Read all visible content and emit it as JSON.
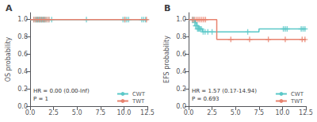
{
  "chart_data": [
    {
      "type": "step",
      "title": "A",
      "ylabel": "OS probability",
      "xlim": [
        0,
        12.5
      ],
      "ylim": [
        0.0,
        1.08
      ],
      "xticks": [
        {
          "value": 0,
          "label": "0.0"
        },
        2.5,
        {
          "value": 5,
          "label": "5.0"
        },
        7.5,
        {
          "value": 10,
          "label": "10.0"
        },
        12.5
      ],
      "yticks": [
        {
          "value": 0.0,
          "label": "0.0"
        },
        0.2,
        0.4,
        0.6,
        0.8,
        {
          "value": 1.0,
          "label": "1.0"
        }
      ],
      "grid": false,
      "legend": "lower right",
      "marker": "plus",
      "annotations": [
        "HR = 0.00 (0.00-Inf)",
        "P = 1"
      ],
      "series": [
        {
          "name": "CWT",
          "color": "#5BC8C8",
          "x": [
            0,
            12.5
          ],
          "values": [
            1.0,
            1.0
          ],
          "censor_x": [
            0.4,
            0.6,
            0.7,
            0.8,
            0.9,
            1.0,
            1.1,
            1.2,
            1.3,
            1.4,
            1.5,
            1.6,
            1.8,
            2.0,
            2.3,
            6.0,
            9.9,
            10.1,
            10.3,
            10.5,
            11.9,
            12.1,
            12.3
          ],
          "censor_y": [
            1.0,
            1.0,
            1.0,
            1.0,
            1.0,
            1.0,
            1.0,
            1.0,
            1.0,
            1.0,
            1.0,
            1.0,
            1.0,
            1.0,
            1.0,
            1.0,
            1.0,
            1.0,
            1.0,
            1.0,
            1.0,
            1.0,
            1.0
          ]
        },
        {
          "name": "TWT",
          "color": "#E8826E",
          "x": [
            0,
            12.5
          ],
          "values": [
            1.0,
            1.0
          ],
          "censor_x": [
            0.4,
            0.6,
            0.8,
            1.0,
            1.2,
            1.4,
            1.6,
            1.8,
            2.0,
            10.1,
            12.4
          ],
          "censor_y": [
            1.0,
            1.0,
            1.0,
            1.0,
            1.0,
            1.0,
            1.0,
            1.0,
            1.0,
            1.0,
            1.0
          ]
        }
      ]
    },
    {
      "type": "step",
      "title": "B",
      "ylabel": "EFS probability",
      "xlim": [
        0,
        12.5
      ],
      "ylim": [
        0.0,
        1.08
      ],
      "xticks": [
        {
          "value": 0,
          "label": "0.0"
        },
        2.5,
        {
          "value": 5,
          "label": "5.0"
        },
        7.5,
        {
          "value": 10,
          "label": "10.0"
        },
        12.5
      ],
      "yticks": [
        {
          "value": 0.0,
          "label": "0.0"
        },
        0.2,
        0.4,
        0.6,
        0.8,
        {
          "value": 1.0,
          "label": "1.0"
        }
      ],
      "grid": false,
      "legend": "lower right",
      "marker": "plus",
      "annotations": [
        "HR = 1.57 (0.17-14.94)",
        "P = 0.693"
      ],
      "series": [
        {
          "name": "CWT",
          "color": "#5BC8C8",
          "x": [
            0,
            0.5,
            0.7,
            0.9,
            1.1,
            1.3,
            1.5,
            1.7,
            2.0,
            2.2,
            2.5,
            3.0,
            6.3,
            7.5,
            10.2,
            12.5
          ],
          "values": [
            1.0,
            1.0,
            0.964,
            0.929,
            0.893,
            0.893,
            0.857,
            0.857,
            0.857,
            0.857,
            0.857,
            0.857,
            0.857,
            0.893,
            0.893,
            0.893
          ],
          "censor_x": [
            0.4,
            0.55,
            0.65,
            0.75,
            0.85,
            0.95,
            1.05,
            1.15,
            1.25,
            1.35,
            1.55,
            1.75,
            2.05,
            2.5,
            6.3,
            10.1,
            10.3,
            10.5,
            12.0,
            12.2,
            12.4
          ],
          "censor_y": [
            1.0,
            1.0,
            0.964,
            0.929,
            0.929,
            0.893,
            0.893,
            0.893,
            0.893,
            0.893,
            0.857,
            0.857,
            0.857,
            0.857,
            0.857,
            0.893,
            0.893,
            0.893,
            0.893,
            0.893,
            0.893
          ]
        },
        {
          "name": "TWT",
          "color": "#E8826E",
          "x": [
            0,
            1.8,
            3.0,
            12.5
          ],
          "values": [
            1.0,
            1.0,
            0.77,
            0.77
          ],
          "censor_x": [
            0.4,
            0.6,
            0.8,
            1.0,
            1.2,
            1.4,
            1.6,
            1.8,
            4.5,
            6.5,
            8.5,
            10.3,
            12.1,
            12.4
          ],
          "censor_y": [
            1.0,
            1.0,
            1.0,
            1.0,
            1.0,
            1.0,
            1.0,
            1.0,
            0.77,
            0.77,
            0.77,
            0.77,
            0.77,
            0.77
          ]
        }
      ]
    }
  ]
}
